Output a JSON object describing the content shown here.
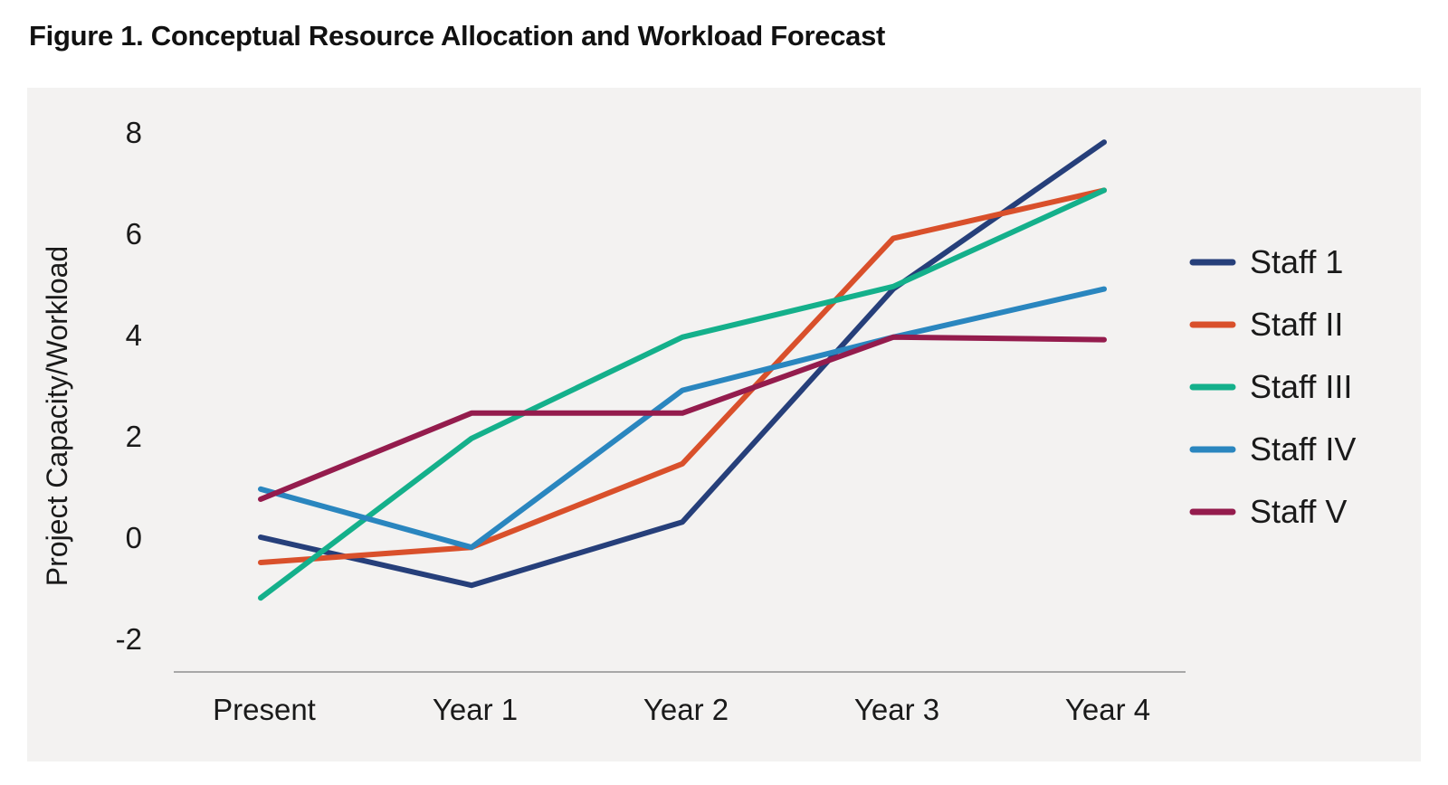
{
  "figure_title": "Figure 1. Conceptual Resource Allocation and Workload Forecast",
  "chart_data": {
    "type": "line",
    "title": "Figure 1. Conceptual Resource Allocation and Workload Forecast",
    "xlabel": "",
    "ylabel": "Project Capacity/Workload",
    "categories": [
      "Present",
      "Year 1",
      "Year 2",
      "Year 3",
      "Year 4"
    ],
    "y_ticks": [
      "-2",
      "0",
      "2",
      "4",
      "6",
      "8"
    ],
    "ylim": [
      -2,
      8
    ],
    "grid": false,
    "legend_position": "right",
    "series": [
      {
        "name": "Staff 1",
        "color": "#263f7a",
        "values": [
          0.0,
          -0.95,
          0.3,
          4.9,
          7.8
        ]
      },
      {
        "name": "Staff II",
        "color": "#d9502b",
        "values": [
          -0.5,
          -0.2,
          1.45,
          5.9,
          6.85
        ]
      },
      {
        "name": "Staff III",
        "color": "#14b08b",
        "values": [
          -1.2,
          1.95,
          3.95,
          4.95,
          6.85
        ]
      },
      {
        "name": "Staff IV",
        "color": "#2a86bf",
        "values": [
          0.95,
          -0.2,
          2.9,
          3.95,
          4.9
        ]
      },
      {
        "name": "Staff V",
        "color": "#941c4d",
        "values": [
          0.75,
          2.45,
          2.45,
          3.95,
          3.9
        ]
      }
    ]
  }
}
